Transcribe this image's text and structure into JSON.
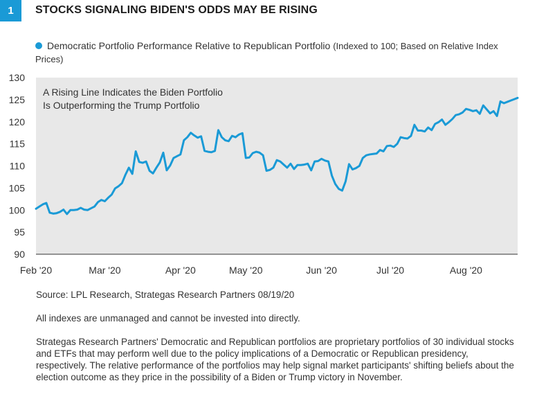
{
  "figure": {
    "number": "1",
    "title": "STOCKS SIGNALING BIDEN'S ODDS MAY BE RISING",
    "badge_color": "#1a9ad6"
  },
  "legend": {
    "label": "Democratic Portfolio Performance Relative to Republican Portfolio",
    "note": "(Indexed to 100; Based on Relative Index Prices)",
    "color": "#1a9ad6"
  },
  "annotation": {
    "line1": "A Rising Line Indicates the Biden Portfolio",
    "line2": "Is Outperforming the Trump Portfolio"
  },
  "footer": {
    "source": "Source: LPL Research, Strategas Research Partners   08/19/20",
    "disclaimer": "All indexes are unmanaged and cannot be invested into directly.",
    "description": "Strategas Research Partners' Democratic and Republican portfolios are proprietary portfolios of 30 individual stocks and ETFs that may perform well due to the policy implications of a Democratic or Republican presidency, respectively. The relative performance of the portfolios may help signal market participants' shifting beliefs about the election outcome as they price in the  possibility of a Biden or Trump victory in November."
  },
  "chart_data": {
    "type": "line",
    "title": "STOCKS SIGNALING BIDEN'S ODDS MAY BE RISING",
    "xlabel": "",
    "ylabel": "",
    "ylim": [
      90,
      130
    ],
    "yticks": [
      90,
      95,
      100,
      105,
      110,
      115,
      120,
      125,
      130
    ],
    "xlim": [
      0,
      140
    ],
    "xtick_labels": [
      "Feb '20",
      "Mar '20",
      "Apr '20",
      "May '20",
      "Jun '20",
      "Jul '20",
      "Aug '20"
    ],
    "xtick_days": [
      0,
      20,
      42,
      61,
      83,
      103,
      125
    ],
    "grid": false,
    "background": "#e8e8e8",
    "series": [
      {
        "name": "Democratic Portfolio Performance Relative to Republican Portfolio",
        "color": "#1a9ad6",
        "x": [
          0,
          1,
          2,
          3,
          4,
          5,
          6,
          7,
          8,
          9,
          10,
          11,
          12,
          13,
          14,
          15,
          16,
          17,
          18,
          19,
          20,
          21,
          22,
          23,
          24,
          25,
          26,
          27,
          28,
          29,
          30,
          31,
          32,
          33,
          34,
          35,
          36,
          37,
          38,
          39,
          40,
          41,
          42,
          43,
          44,
          45,
          46,
          47,
          48,
          49,
          50,
          51,
          52,
          53,
          54,
          55,
          56,
          57,
          58,
          59,
          60,
          61,
          62,
          63,
          64,
          65,
          66,
          67,
          68,
          69,
          70,
          71,
          72,
          73,
          74,
          75,
          76,
          77,
          78,
          79,
          80,
          81,
          82,
          83,
          84,
          85,
          86,
          87,
          88,
          89,
          90,
          91,
          92,
          93,
          94,
          95,
          96,
          97,
          98,
          99,
          100,
          101,
          102,
          103,
          104,
          105,
          106,
          107,
          108,
          109,
          110,
          111,
          112,
          113,
          114,
          115,
          116,
          117,
          118,
          119,
          120,
          121,
          122,
          123,
          124,
          125,
          126,
          127,
          128,
          129,
          130,
          131,
          132,
          133,
          134,
          135,
          136,
          137,
          138,
          139,
          140
        ],
        "values": [
          100.3,
          100.8,
          101.3,
          101.6,
          99.4,
          99.2,
          99.3,
          99.6,
          100.1,
          99.1,
          100.0,
          100.0,
          100.1,
          100.5,
          100.1,
          100.0,
          100.4,
          100.8,
          101.8,
          102.3,
          102.0,
          102.8,
          103.5,
          104.9,
          105.4,
          106.1,
          108.0,
          109.6,
          108.2,
          113.3,
          110.9,
          110.7,
          111.0,
          108.9,
          108.3,
          109.6,
          110.8,
          113.0,
          109.0,
          110.1,
          111.8,
          112.2,
          112.6,
          115.8,
          116.5,
          117.5,
          116.9,
          116.4,
          116.7,
          113.4,
          113.2,
          113.1,
          113.4,
          118.1,
          116.5,
          115.8,
          115.6,
          116.8,
          116.5,
          117.1,
          117.4,
          111.8,
          111.9,
          112.9,
          113.2,
          113.0,
          112.4,
          108.9,
          109.1,
          109.6,
          111.3,
          111.0,
          110.3,
          109.6,
          110.5,
          109.3,
          110.2,
          110.2,
          110.3,
          110.5,
          109.0,
          111.0,
          111.1,
          111.6,
          111.2,
          111.0,
          107.8,
          105.9,
          104.8,
          104.4,
          106.5,
          110.4,
          109.2,
          109.5,
          110.0,
          111.8,
          112.4,
          112.6,
          112.7,
          112.8,
          113.6,
          113.3,
          114.5,
          114.6,
          114.3,
          115.0,
          116.5,
          116.3,
          116.2,
          116.8,
          119.3,
          118.0,
          118.0,
          117.8,
          118.7,
          118.1,
          119.5,
          119.9,
          120.5,
          119.3,
          119.9,
          120.6,
          121.5,
          121.7,
          122.1,
          122.9,
          122.7,
          122.4,
          122.6,
          121.8,
          123.7,
          122.8,
          121.9,
          122.4,
          121.3,
          124.6,
          124.2,
          124.5,
          124.8,
          125.1,
          125.4
        ]
      }
    ]
  }
}
